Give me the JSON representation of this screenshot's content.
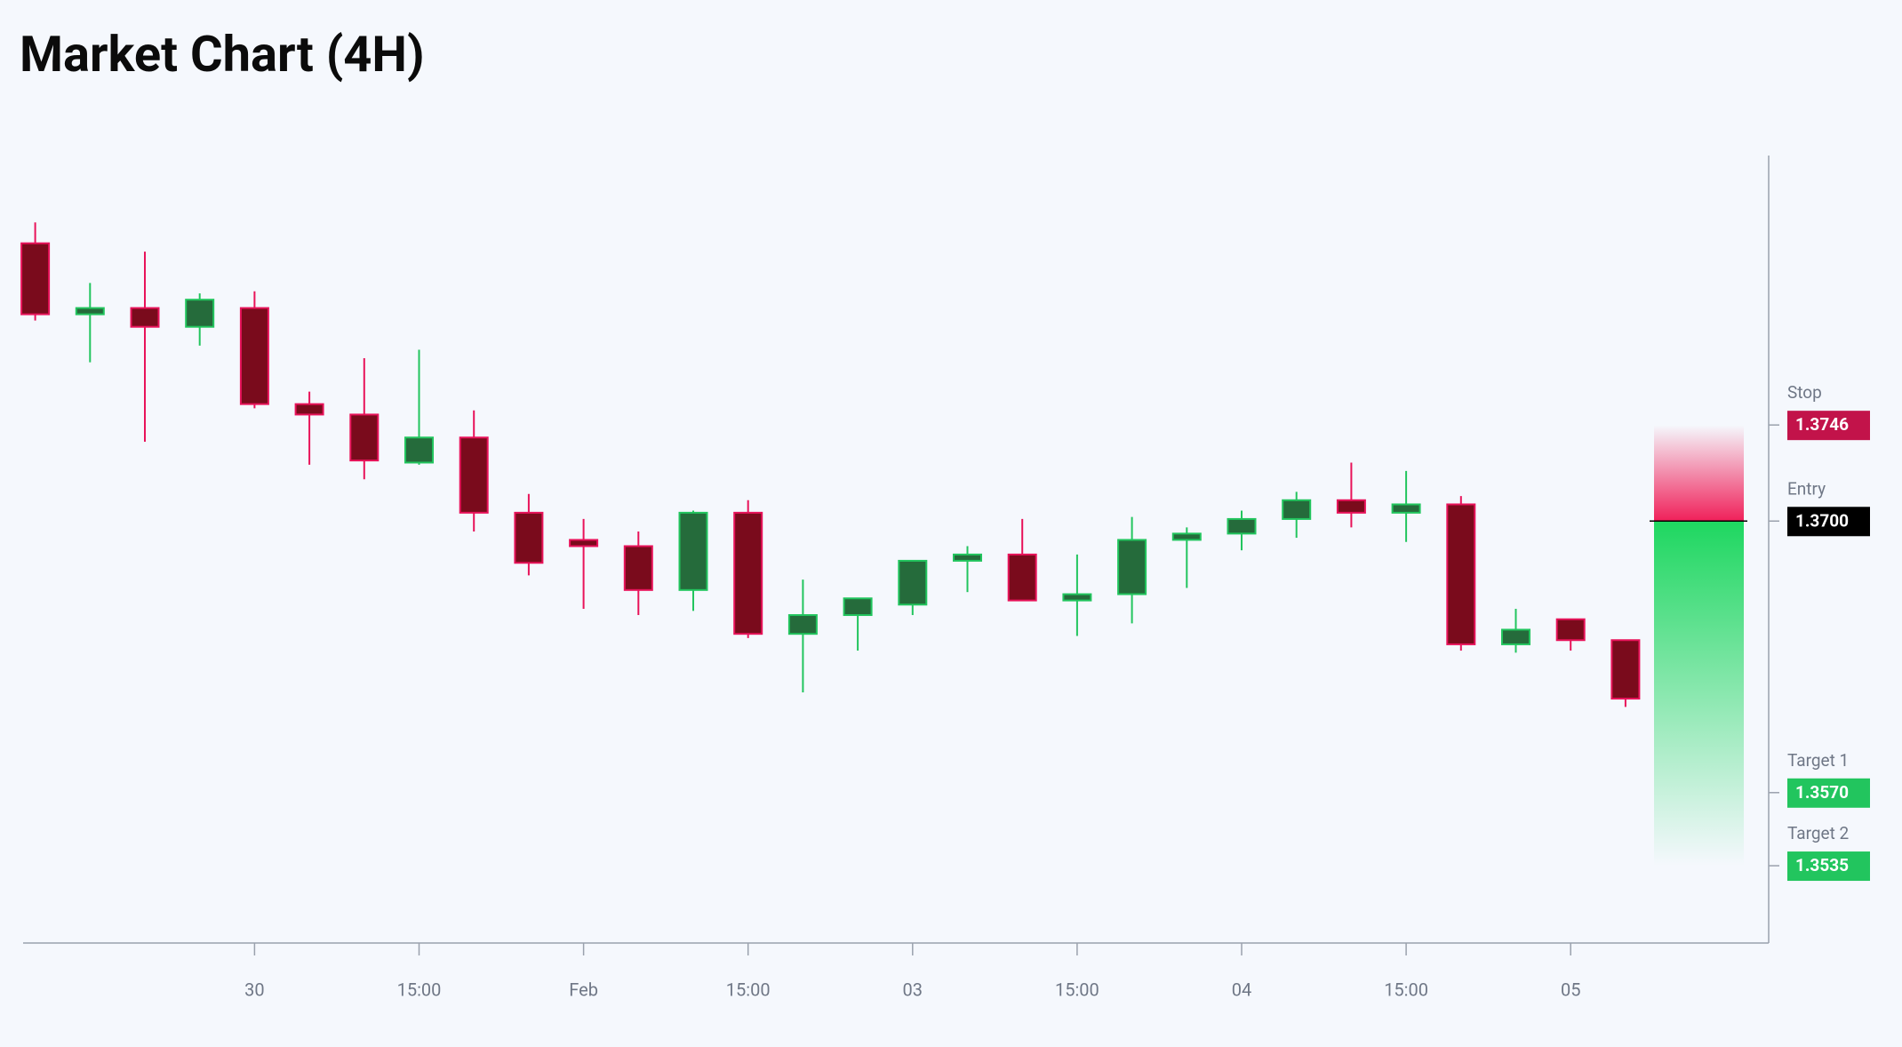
{
  "chart_data": {
    "type": "candlestick",
    "title": "Market Chart (4H)",
    "categories": [
      null,
      null,
      null,
      null,
      "30",
      null,
      null,
      "15:00",
      null,
      null,
      "Feb",
      null,
      null,
      "15:00",
      null,
      null,
      "03",
      null,
      null,
      "15:00",
      null,
      null,
      "04",
      null,
      null,
      "15:00",
      null,
      null,
      "05",
      null
    ],
    "open": [
      1.3833,
      1.3799,
      1.3802,
      1.3793,
      1.3802,
      1.3756,
      1.3751,
      1.3728,
      1.374,
      1.3704,
      1.3691,
      1.3688,
      1.3667,
      1.3704,
      1.3646,
      1.3655,
      1.366,
      1.3681,
      1.3684,
      1.3662,
      1.3665,
      1.3691,
      1.3694,
      1.3701,
      1.371,
      1.3704,
      1.3708,
      1.3641,
      1.3653,
      1.3643
    ],
    "high": [
      1.3843,
      1.3814,
      1.3829,
      1.3809,
      1.381,
      1.3762,
      1.3778,
      1.3782,
      1.3753,
      1.3713,
      1.3701,
      1.3695,
      1.3705,
      1.371,
      1.3672,
      1.3663,
      1.3681,
      1.3688,
      1.3701,
      1.3684,
      1.3702,
      1.3697,
      1.3705,
      1.3714,
      1.3728,
      1.3724,
      1.3712,
      1.3658,
      1.3653,
      1.3643
    ],
    "low": [
      1.3796,
      1.3776,
      1.3738,
      1.3784,
      1.3754,
      1.3727,
      1.372,
      1.3727,
      1.3695,
      1.3674,
      1.3658,
      1.3655,
      1.3657,
      1.3644,
      1.3618,
      1.3638,
      1.3655,
      1.3666,
      1.3662,
      1.3645,
      1.3651,
      1.3668,
      1.3686,
      1.3692,
      1.3697,
      1.369,
      1.3638,
      1.3637,
      1.3638,
      1.3611
    ],
    "close": [
      1.3799,
      1.3802,
      1.3793,
      1.3806,
      1.3756,
      1.3751,
      1.3729,
      1.374,
      1.3704,
      1.368,
      1.3688,
      1.3667,
      1.3704,
      1.3646,
      1.3655,
      1.3663,
      1.3681,
      1.3684,
      1.3662,
      1.3665,
      1.3691,
      1.3694,
      1.3701,
      1.371,
      1.3704,
      1.3708,
      1.3641,
      1.3648,
      1.3643,
      1.3615
    ],
    "ylim": [
      1.3498,
      1.3875
    ],
    "colors": {
      "up_body": "#256b3b",
      "up_line": "#22c55e",
      "down_body": "#7a0b1c",
      "down_line": "#e8135a"
    },
    "levels": {
      "names": [
        "Stop",
        "Entry",
        "Target 1",
        "Target 2"
      ],
      "values": [
        1.3746,
        1.37,
        1.357,
        1.3535
      ],
      "value_labels": [
        "1.3746",
        "1.3700",
        "1.3570",
        "1.3535"
      ],
      "colors": [
        "#c2134a",
        "#000000",
        "#22c55e",
        "#22c55e"
      ]
    }
  }
}
